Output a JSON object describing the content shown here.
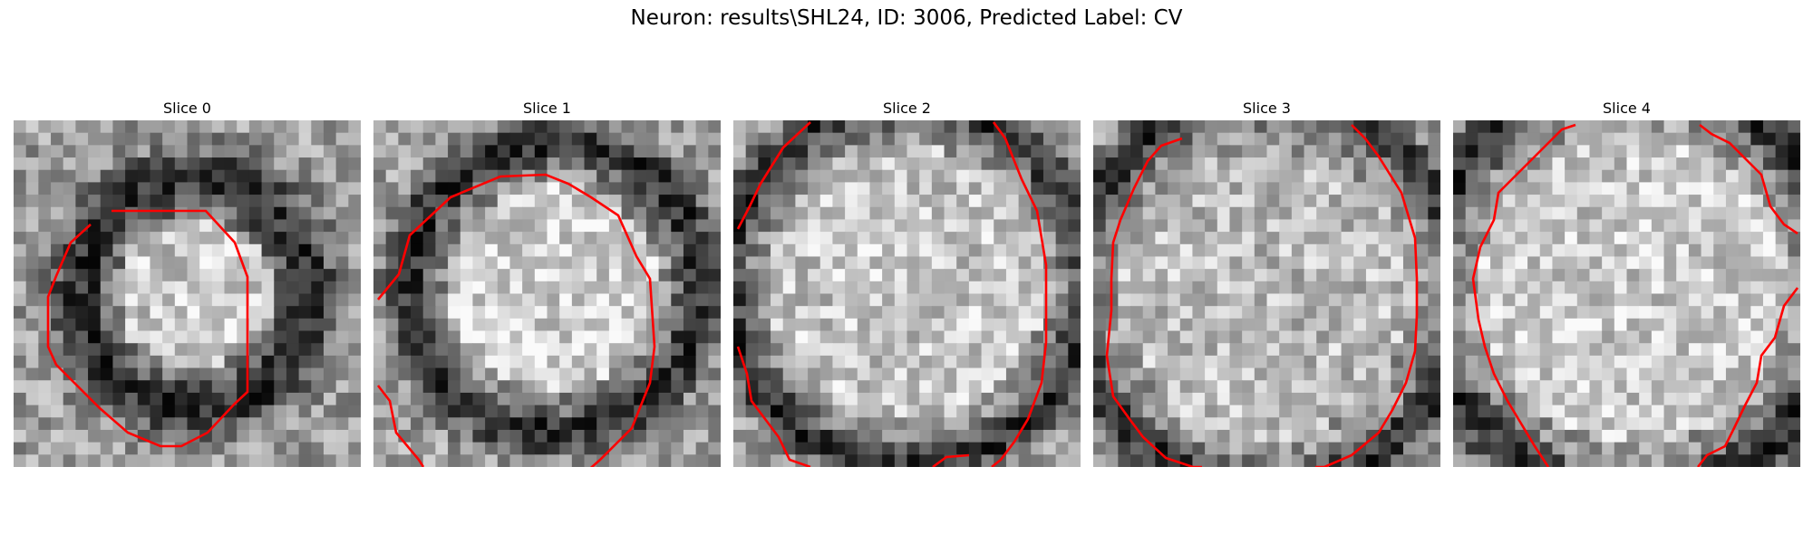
{
  "figure": {
    "title": "Neuron: results\\SHL24, ID: 3006, Predicted Label: CV"
  },
  "panels": [
    {
      "title": "Slice 0"
    },
    {
      "title": "Slice 1"
    },
    {
      "title": "Slice 2"
    },
    {
      "title": "Slice 3"
    },
    {
      "title": "Slice 4"
    }
  ],
  "colors": {
    "contour": "#ff0000",
    "colormap": "grayscale"
  }
}
